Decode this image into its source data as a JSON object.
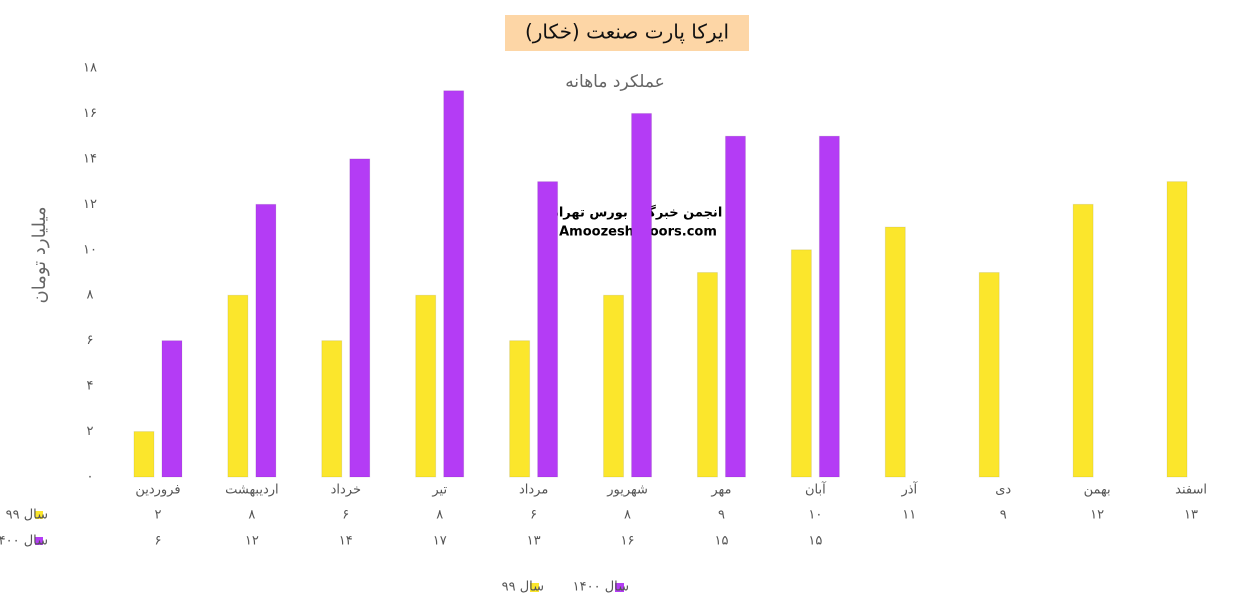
{
  "chart_data": {
    "type": "bar",
    "title": "ایرکا پارت صنعت (خکار)",
    "subtitle": "عملکرد ماهانه",
    "y_label": "میلیارد تومان",
    "annotations": [
      "انجمن خبرگان بورس تهران",
      "Amoozesh_boors.com"
    ],
    "categories": [
      "فروردین",
      "اردیبهشت",
      "خرداد",
      "تیر",
      "مرداد",
      "شهریور",
      "مهر",
      "آبان",
      "آذر",
      "دی",
      "بهمن",
      "اسفند"
    ],
    "series": [
      {
        "name": "سال ۹۹",
        "color": "#fbe62c",
        "values": [
          2,
          8,
          6,
          8,
          6,
          8,
          9,
          10,
          11,
          9,
          12,
          13
        ],
        "value_labels": [
          "۲",
          "۸",
          "۶",
          "۸",
          "۶",
          "۸",
          "۹",
          "۱۰",
          "۱۱",
          "۹",
          "۱۲",
          "۱۳"
        ]
      },
      {
        "name": "سال ۱۴۰۰",
        "color": "#b43cf5",
        "values": [
          6,
          12,
          14,
          17,
          13,
          16,
          15,
          15,
          null,
          null,
          null,
          null
        ],
        "value_labels": [
          "۶",
          "۱۲",
          "۱۴",
          "۱۷",
          "۱۳",
          "۱۶",
          "۱۵",
          "۱۵",
          null,
          null,
          null,
          null
        ]
      }
    ],
    "ylim": [
      0,
      18
    ],
    "yticks": [
      {
        "value": 0,
        "label": "۰"
      },
      {
        "value": 2,
        "label": "۲"
      },
      {
        "value": 4,
        "label": "۴"
      },
      {
        "value": 6,
        "label": "۶"
      },
      {
        "value": 8,
        "label": "۸"
      },
      {
        "value": 10,
        "label": "۱۰"
      },
      {
        "value": 12,
        "label": "۱۲"
      },
      {
        "value": 14,
        "label": "۱۴"
      },
      {
        "value": 16,
        "label": "۱۶"
      },
      {
        "value": 18,
        "label": "۱۸"
      }
    ],
    "grid": false
  }
}
